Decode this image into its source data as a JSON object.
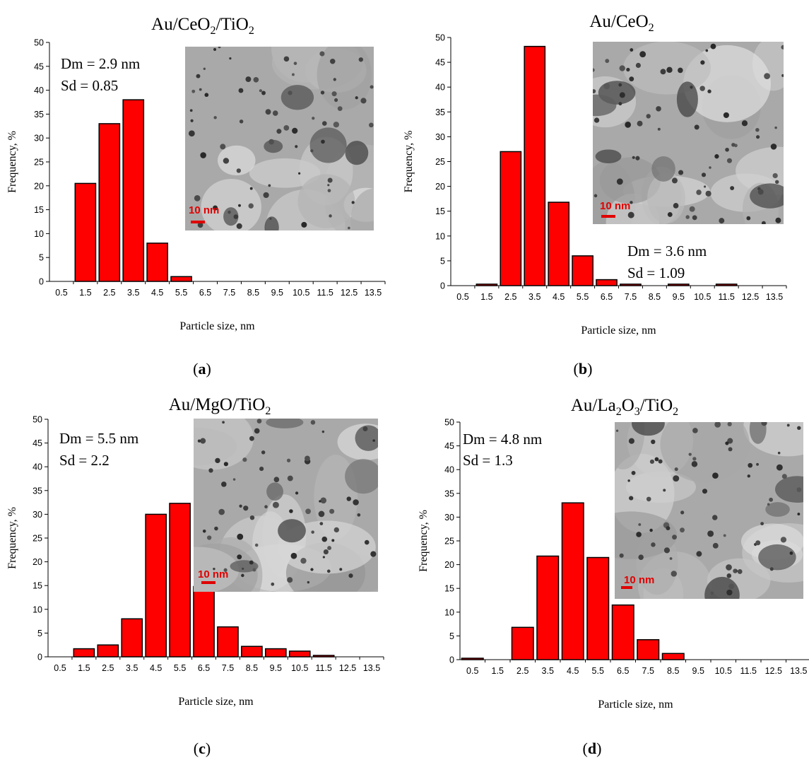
{
  "figure": {
    "tick_labels_x": [
      "0.5",
      "1.5",
      "2.5",
      "3.5",
      "4.5",
      "5.5",
      "6.5",
      "7.5",
      "8.5",
      "9.5",
      "10.5",
      "11.5",
      "12.5",
      "13.5"
    ],
    "tick_labels_y": [
      "0",
      "5",
      "10",
      "15",
      "20",
      "25",
      "30",
      "35",
      "40",
      "45",
      "50"
    ],
    "ylabel": "Frequency, %",
    "xlabel": "Particle size, nm",
    "bar_color": "#ff0000",
    "bar_edge_color": "#000000",
    "scale_bar_color": "#e00000",
    "scale_bar_label": "10 nm"
  },
  "chart_data": [
    {
      "type": "bar",
      "panel_label": "a",
      "title": {
        "p1": "Au/CeO",
        "s1": "2",
        "p2": "/TiO",
        "s2": "2",
        "p3": "",
        "s3": ""
      },
      "categories": [
        "0.5",
        "1.5",
        "2.5",
        "3.5",
        "4.5",
        "5.5",
        "6.5",
        "7.5",
        "8.5",
        "9.5",
        "10.5",
        "11.5",
        "12.5",
        "13.5"
      ],
      "values": [
        0,
        20.5,
        33,
        38,
        8,
        1,
        0,
        0,
        0,
        0,
        0,
        0,
        0,
        0
      ],
      "xlabel": "Particle size, nm",
      "ylabel": "Frequency, %",
      "ylim": [
        0,
        50
      ],
      "annotations": {
        "dm": "Dm = 2.9 nm",
        "sd": "Sd = 0.85"
      },
      "inset": "TEM micrograph, scale bar 10 nm"
    },
    {
      "type": "bar",
      "panel_label": "b",
      "title": {
        "p1": "Au/CeO",
        "s1": "2",
        "p2": "",
        "s2": "",
        "p3": "",
        "s3": ""
      },
      "categories": [
        "0.5",
        "1.5",
        "2.5",
        "3.5",
        "4.5",
        "5.5",
        "6.5",
        "7.5",
        "8.5",
        "9.5",
        "10.5",
        "11.5",
        "12.5",
        "13.5"
      ],
      "values": [
        0,
        0.3,
        27,
        48.2,
        16.8,
        6,
        1.2,
        0.3,
        0,
        0.3,
        0,
        0.3,
        0,
        0
      ],
      "xlabel": "Particle size, nm",
      "ylabel": "Frequency, %",
      "ylim": [
        0,
        50
      ],
      "annotations": {
        "dm": "Dm = 3.6 nm",
        "sd": "Sd = 1.09"
      },
      "inset": "TEM micrograph, scale bar 10 nm"
    },
    {
      "type": "bar",
      "panel_label": "c",
      "title": {
        "p1": "Au/MgO/TiO",
        "s1": "2",
        "p2": "",
        "s2": "",
        "p3": "",
        "s3": ""
      },
      "categories": [
        "0.5",
        "1.5",
        "2.5",
        "3.5",
        "4.5",
        "5.5",
        "6.5",
        "7.5",
        "8.5",
        "9.5",
        "10.5",
        "11.5",
        "12.5",
        "13.5"
      ],
      "values": [
        0,
        1.7,
        2.5,
        8,
        30,
        32.3,
        14.8,
        6.3,
        2.2,
        1.7,
        1.2,
        0.3,
        0,
        0
      ],
      "xlabel": "Particle size, nm",
      "ylabel": "Frequency, %",
      "ylim": [
        0,
        50
      ],
      "annotations": {
        "dm": "Dm = 5.5 nm",
        "sd": "Sd = 2.2"
      },
      "inset": "TEM micrograph, scale bar 10 nm"
    },
    {
      "type": "bar",
      "panel_label": "d",
      "title": {
        "p1": "Au/La",
        "s1": "2",
        "p2": "O",
        "s2": "3",
        "p3": "/TiO",
        "s3": "2"
      },
      "categories": [
        "0.5",
        "1.5",
        "2.5",
        "3.5",
        "4.5",
        "5.5",
        "6.5",
        "7.5",
        "8.5",
        "9.5",
        "10.5",
        "11.5",
        "12.5",
        "13.5"
      ],
      "values": [
        0.3,
        0,
        6.8,
        21.8,
        33,
        21.5,
        11.5,
        4.2,
        1.3,
        0,
        0,
        0,
        0,
        0
      ],
      "xlabel": "Particle size, nm",
      "ylabel": "Frequency, %",
      "ylim": [
        0,
        50
      ],
      "annotations": {
        "dm": "Dm = 4.8 nm",
        "sd": "Sd = 1.3"
      },
      "inset": "TEM micrograph, scale bar 10 nm"
    }
  ]
}
